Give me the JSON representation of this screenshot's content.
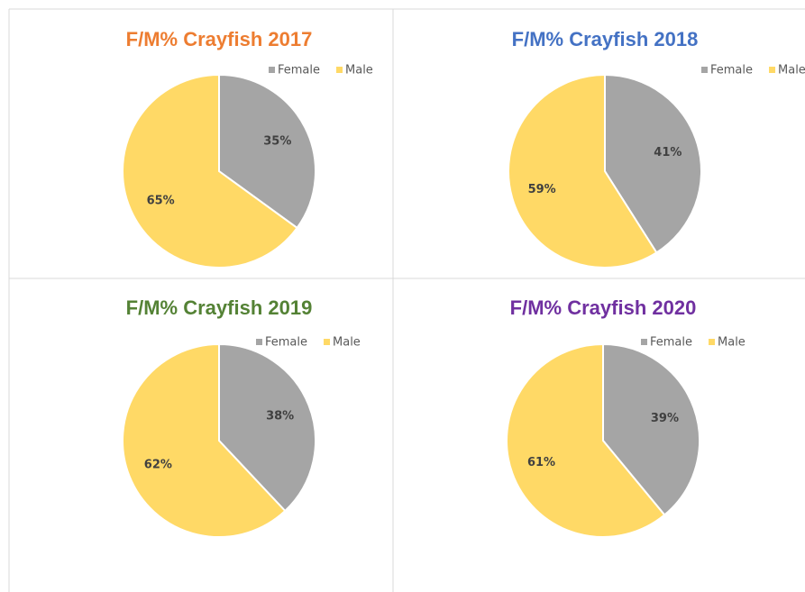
{
  "chart_data": [
    {
      "type": "pie",
      "title": "F/M% Crayfish 2017",
      "title_color": "#ed7d31",
      "categories": [
        "Female",
        "Male"
      ],
      "values": [
        35,
        65
      ],
      "value_labels": [
        "35%",
        "65%"
      ],
      "colors": [
        "#a5a5a5",
        "#ffd966"
      ],
      "legend": "top-right"
    },
    {
      "type": "pie",
      "title": "F/M% Crayfish 2018",
      "title_color": "#4472c4",
      "categories": [
        "Female",
        "Male"
      ],
      "values": [
        41,
        59
      ],
      "value_labels": [
        "41%",
        "59%"
      ],
      "colors": [
        "#a5a5a5",
        "#ffd966"
      ],
      "legend": "top-right"
    },
    {
      "type": "pie",
      "title": "F/M% Crayfish 2019",
      "title_color": "#548235",
      "categories": [
        "Female",
        "Male"
      ],
      "values": [
        38,
        62
      ],
      "value_labels": [
        "38%",
        "62%"
      ],
      "colors": [
        "#a5a5a5",
        "#ffd966"
      ],
      "legend": "top-right"
    },
    {
      "type": "pie",
      "title": "F/M% Crayfish 2020",
      "title_color": "#7030a0",
      "categories": [
        "Female",
        "Male"
      ],
      "values": [
        39,
        61
      ],
      "value_labels": [
        "39%",
        "61%"
      ],
      "colors": [
        "#a5a5a5",
        "#ffd966"
      ],
      "legend": "top-right"
    }
  ]
}
